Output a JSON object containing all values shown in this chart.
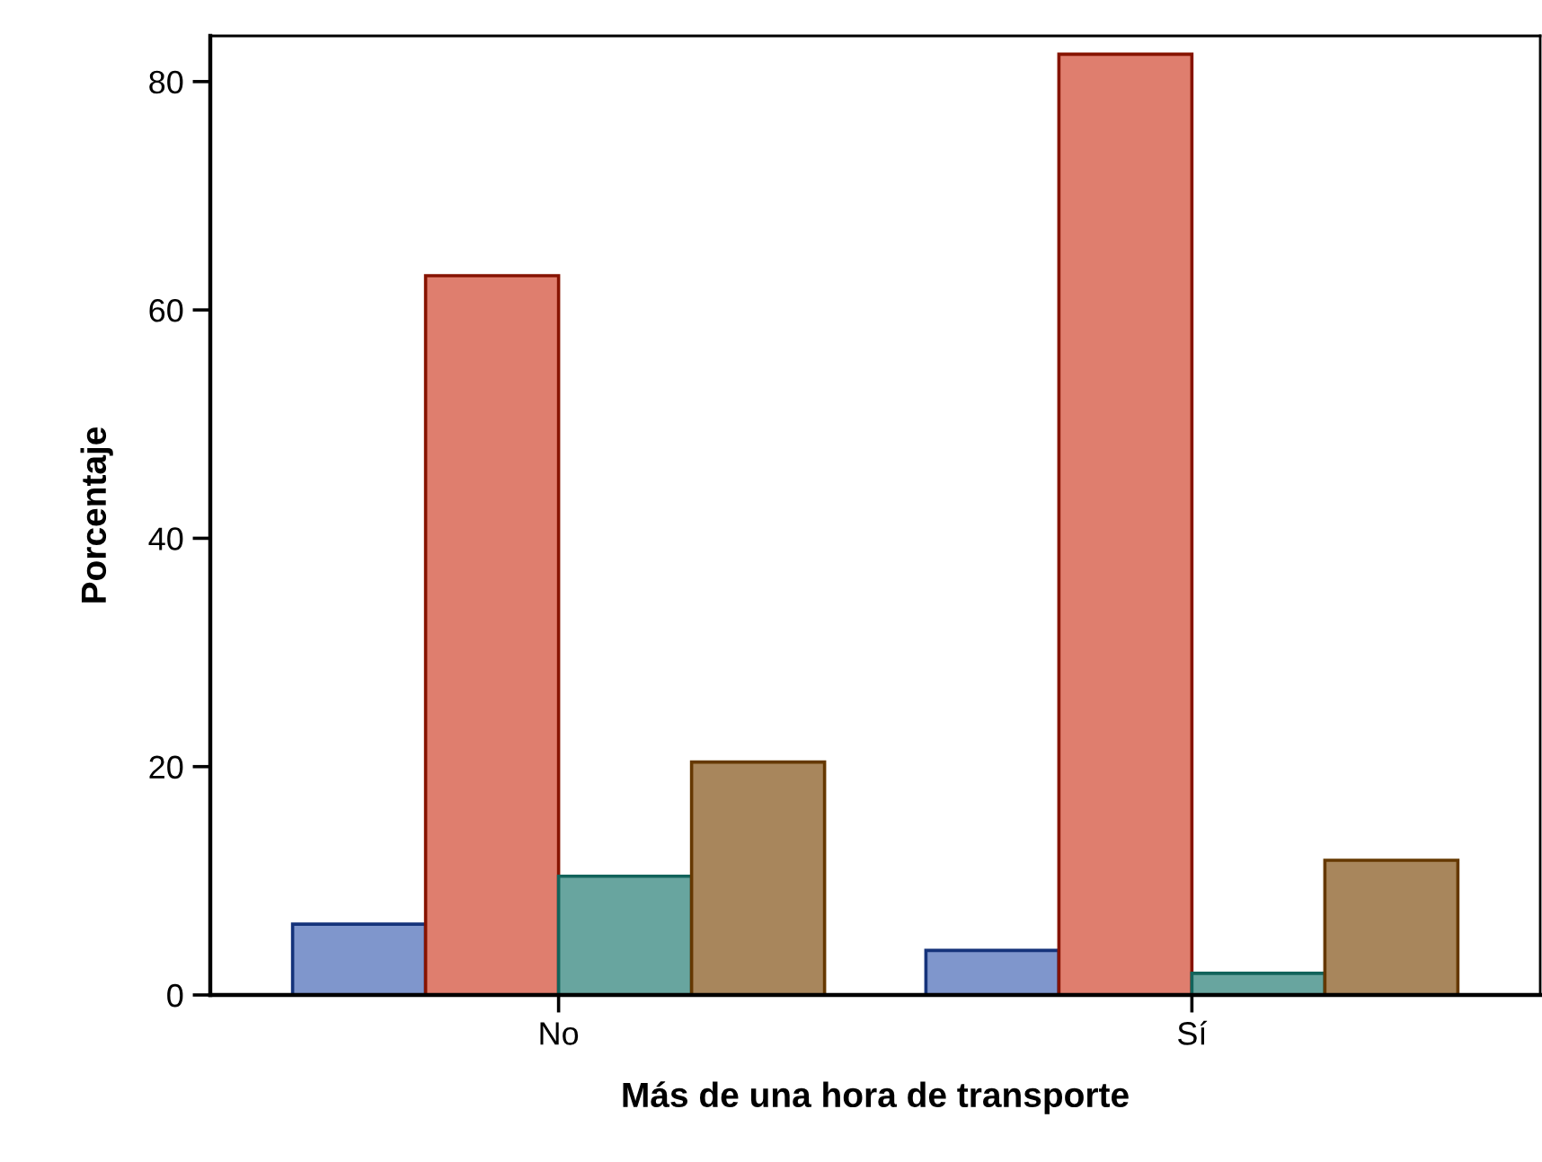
{
  "chart_data": {
    "type": "bar",
    "xlabel": "Más de una hora de transporte",
    "ylabel": "Porcentaje",
    "categories": [
      "No",
      "Sí"
    ],
    "series": [
      {
        "color": "#7f96cc",
        "values": [
          6.2,
          3.9
        ]
      },
      {
        "color": "#df7e6e",
        "values": [
          63.0,
          82.4
        ]
      },
      {
        "color": "#68a59f",
        "values": [
          10.4,
          1.9
        ]
      },
      {
        "color": "#a8865c",
        "values": [
          20.4,
          11.8
        ]
      }
    ],
    "ylim": [
      0,
      84
    ],
    "yticks": [
      0,
      20,
      40,
      60,
      80
    ],
    "grid": false
  }
}
